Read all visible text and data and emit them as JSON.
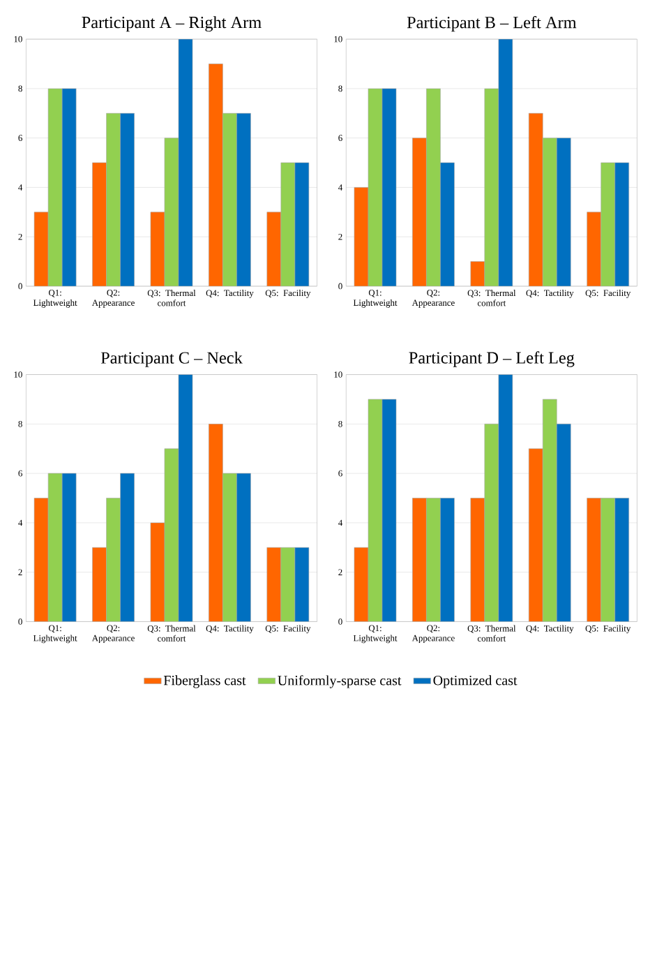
{
  "chart_data": [
    {
      "type": "bar",
      "title": "Participant A – Right Arm",
      "categories": [
        "Q1: Lightweight",
        "Q2: Appearance",
        "Q3: Thermal comfort",
        "Q4: Tactility",
        "Q5: Facility"
      ],
      "ylim": [
        0,
        10
      ],
      "yticks": [
        0,
        2,
        4,
        6,
        8,
        10
      ],
      "grid": "y",
      "series": [
        {
          "color": "#ff6600",
          "values": [
            3,
            5,
            3,
            9,
            3
          ]
        },
        {
          "color": "#92d050",
          "values": [
            8,
            7,
            6,
            7,
            5
          ]
        },
        {
          "color": "#0070c0",
          "values": [
            8,
            7,
            10,
            7,
            5
          ]
        }
      ]
    },
    {
      "type": "bar",
      "title": "Participant B – Left Arm",
      "categories": [
        "Q1: Lightweight",
        "Q2: Appearance",
        "Q3: Thermal comfort",
        "Q4: Tactility",
        "Q5: Facility"
      ],
      "ylim": [
        0,
        10
      ],
      "yticks": [
        0,
        2,
        4,
        6,
        8,
        10
      ],
      "grid": "y",
      "series": [
        {
          "color": "#ff6600",
          "values": [
            4,
            6,
            1,
            7,
            3
          ]
        },
        {
          "color": "#92d050",
          "values": [
            8,
            8,
            8,
            6,
            5
          ]
        },
        {
          "color": "#0070c0",
          "values": [
            8,
            5,
            10,
            6,
            5
          ]
        }
      ]
    },
    {
      "type": "bar",
      "title": "Participant C – Neck",
      "categories": [
        "Q1: Lightweight",
        "Q2: Appearance",
        "Q3: Thermal comfort",
        "Q4: Tactility",
        "Q5: Facility"
      ],
      "ylim": [
        0,
        10
      ],
      "yticks": [
        0,
        2,
        4,
        6,
        8,
        10
      ],
      "grid": "y",
      "series": [
        {
          "color": "#ff6600",
          "values": [
            5,
            3,
            4,
            8,
            3
          ]
        },
        {
          "color": "#92d050",
          "values": [
            6,
            5,
            7,
            6,
            3
          ]
        },
        {
          "color": "#0070c0",
          "values": [
            6,
            6,
            10,
            6,
            3
          ]
        }
      ]
    },
    {
      "type": "bar",
      "title": "Participant D – Left Leg",
      "categories": [
        "Q1: Lightweight",
        "Q2: Appearance",
        "Q3: Thermal comfort",
        "Q4: Tactility",
        "Q5: Facility"
      ],
      "ylim": [
        0,
        10
      ],
      "yticks": [
        0,
        2,
        4,
        6,
        8,
        10
      ],
      "grid": "y",
      "legend": "bottom",
      "series": [
        {
          "name": "Fiberglass cast",
          "color": "#ff6600",
          "values": [
            3,
            5,
            5,
            7,
            5
          ]
        },
        {
          "name": "Uniformly-sparse cast",
          "color": "#92d050",
          "values": [
            9,
            5,
            8,
            9,
            5
          ]
        },
        {
          "name": "Optimized cast",
          "color": "#0070c0",
          "values": [
            9,
            5,
            10,
            8,
            5
          ]
        }
      ]
    }
  ]
}
